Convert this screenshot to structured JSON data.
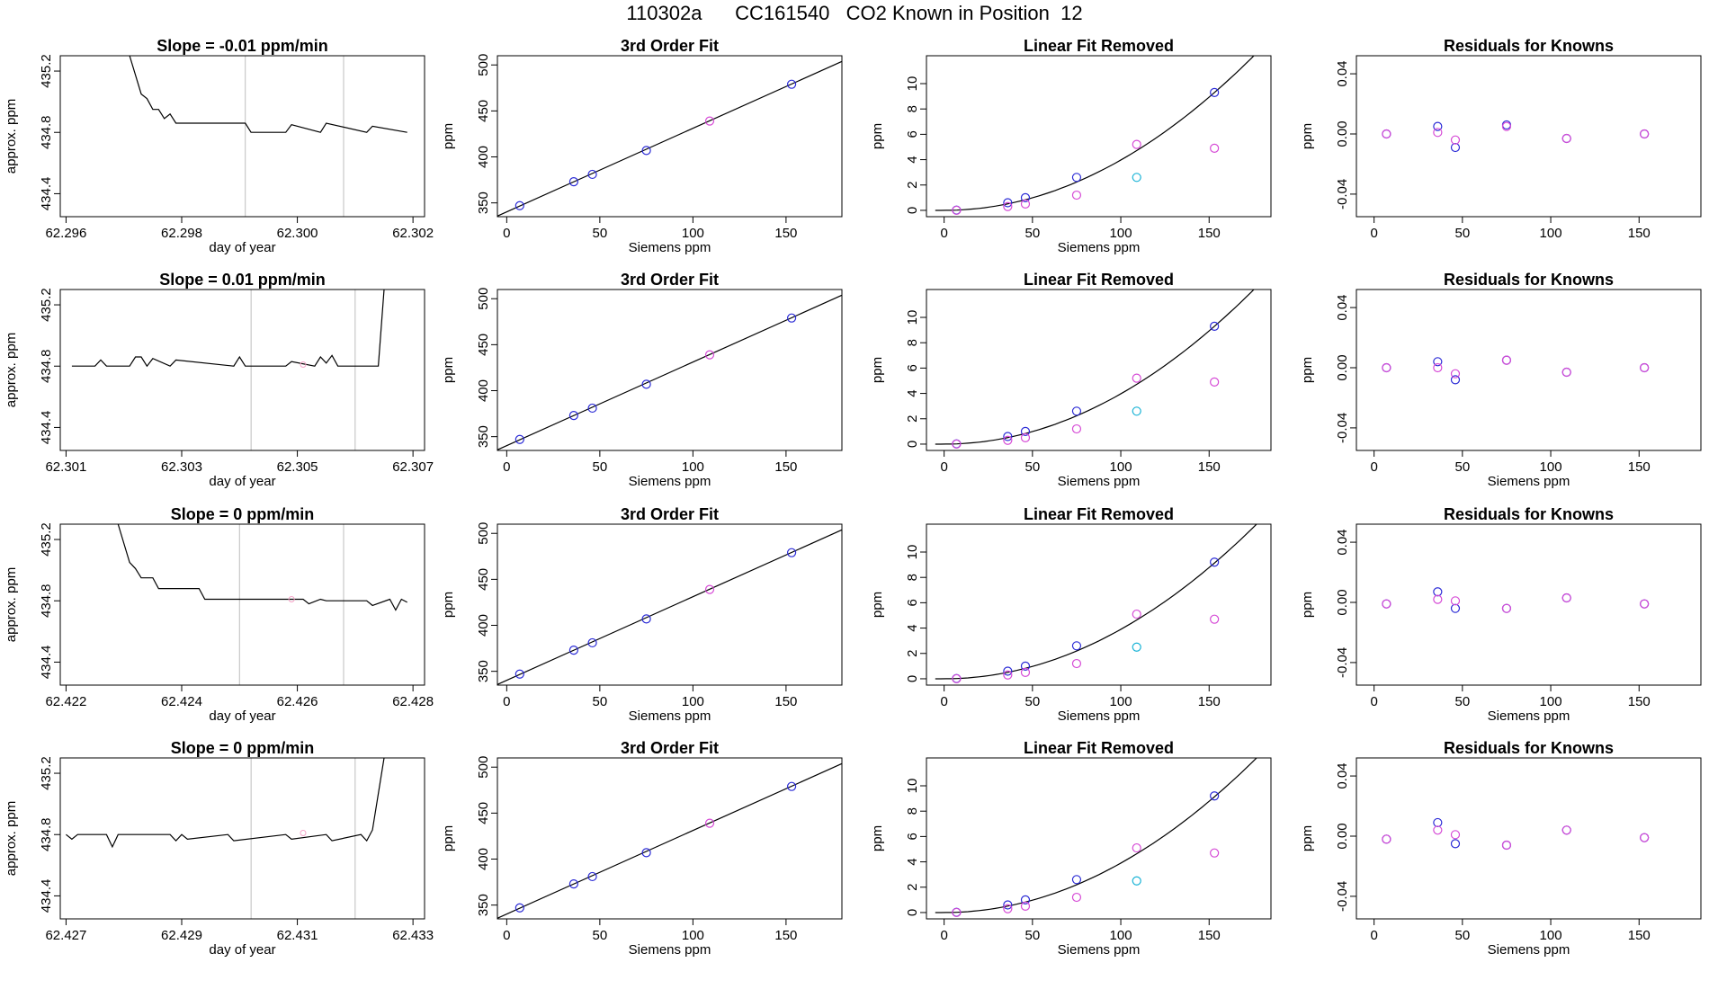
{
  "page": {
    "title": "110302a      CC161540   CO2 Known in Position  12"
  },
  "colors": {
    "axis": "#000000",
    "line": "#000000",
    "vline": "#bdbdbd",
    "blue": "#2b2bd6",
    "magenta": "#d64bd6",
    "cyan": "#19b3d6",
    "purple": "#7a2bd6",
    "pink": "#f5a3c7"
  },
  "chart_data": [
    {
      "type": "line",
      "row": 1,
      "title": "Slope =  -0.01  ppm/min",
      "xlabel": "day of year",
      "ylabel": "approx. ppm",
      "xlim": [
        62.2959,
        62.3022
      ],
      "ylim": [
        434.25,
        435.3
      ],
      "xticks": [
        "62.296",
        "62.298",
        "62.300",
        "62.302"
      ],
      "yticks": [
        "434.4",
        "434.8",
        "435.2"
      ],
      "vlines": [
        62.2991,
        62.3008
      ],
      "x": [
        62.2971,
        62.2973,
        62.2974,
        62.2975,
        62.2976,
        62.2977,
        62.2978,
        62.2979,
        62.298,
        62.2986,
        62.2991,
        62.2992,
        62.2993,
        62.2998,
        62.2999,
        62.3004,
        62.3005,
        62.3012,
        62.3013,
        62.3019
      ],
      "y": [
        435.3,
        435.05,
        435.02,
        434.95,
        434.95,
        434.89,
        434.92,
        434.86,
        434.86,
        434.86,
        434.86,
        434.8,
        434.8,
        434.8,
        434.85,
        434.8,
        434.86,
        434.8,
        434.84,
        434.8
      ]
    },
    {
      "type": "scatter",
      "row": 1,
      "title": "3rd Order Fit",
      "xlabel": "Siemens ppm",
      "ylabel": "ppm",
      "xlim": [
        -5,
        180
      ],
      "ylim": [
        335,
        510
      ],
      "xticks": [
        "0",
        "50",
        "100",
        "150"
      ],
      "yticks": [
        "350",
        "400",
        "450",
        "500"
      ],
      "fit": [
        [
          -5,
          335.7
        ],
        [
          180,
          503.8
        ]
      ],
      "series": [
        {
          "color": "blue",
          "x": [
            7,
            36,
            46,
            75,
            153
          ],
          "y": [
            347,
            373,
            381,
            407,
            479
          ]
        },
        {
          "color": "magenta",
          "x": [
            109
          ],
          "y": [
            439
          ]
        }
      ]
    },
    {
      "type": "scatter",
      "row": 1,
      "title": "Linear Fit Removed",
      "xlabel": "Siemens ppm",
      "ylabel": "ppm",
      "xlim": [
        -10,
        185
      ],
      "ylim": [
        -0.5,
        12.2
      ],
      "xticks": [
        "0",
        "50",
        "100",
        "150"
      ],
      "yticks": [
        "0",
        "2",
        "4",
        "6",
        "8",
        "10"
      ],
      "curve": {
        "k": 0.000397,
        "p": 2,
        "x0": -5,
        "x1": 180
      },
      "series": [
        {
          "color": "blue",
          "x": [
            7,
            36,
            46,
            75,
            153
          ],
          "y": [
            0.02,
            0.6,
            1.0,
            2.6,
            9.3
          ]
        },
        {
          "color": "magenta",
          "x": [
            7,
            36,
            46,
            75,
            109,
            153
          ],
          "y": [
            0.0,
            0.3,
            0.5,
            1.2,
            5.2,
            4.9
          ]
        },
        {
          "color": "cyan",
          "x": [
            109
          ],
          "y": [
            2.6
          ]
        }
      ]
    },
    {
      "type": "scatter",
      "row": 1,
      "title": "Residuals for Knowns",
      "xlabel": "",
      "ylabel": "ppm",
      "xlim": [
        -10,
        185
      ],
      "ylim": [
        -0.055,
        0.052
      ],
      "xticks": [
        "0",
        "50",
        "100",
        "150"
      ],
      "yticks": [
        "-0.04",
        "0.00",
        "0.04"
      ],
      "series": [
        {
          "color": "blue",
          "x": [
            7,
            36,
            46,
            75,
            109,
            153
          ],
          "y": [
            0.0,
            0.005,
            -0.009,
            0.006,
            -0.003,
            0.0
          ]
        },
        {
          "color": "magenta",
          "x": [
            7,
            36,
            46,
            75,
            109,
            153
          ],
          "y": [
            0.0,
            0.001,
            -0.004,
            0.005,
            -0.003,
            0.0
          ]
        }
      ]
    },
    {
      "type": "line",
      "row": 2,
      "title": "Slope =  0.01  ppm/min",
      "xlabel": "day of year",
      "ylabel": "approx. ppm",
      "xlim": [
        62.3009,
        62.3072
      ],
      "ylim": [
        434.25,
        435.3
      ],
      "xticks": [
        "62.301",
        "62.303",
        "62.305",
        "62.307"
      ],
      "yticks": [
        "434.4",
        "434.8",
        "435.2"
      ],
      "vlines": [
        62.3042,
        62.306
      ],
      "pinkdot": [
        62.3051,
        434.81
      ],
      "x": [
        62.3011,
        62.3015,
        62.3016,
        62.3017,
        62.3021,
        62.3022,
        62.3023,
        62.3024,
        62.3025,
        62.3028,
        62.3029,
        62.3039,
        62.304,
        62.3041,
        62.3048,
        62.3049,
        62.3053,
        62.3054,
        62.3055,
        62.3056,
        62.3057,
        62.3064,
        62.3065
      ],
      "y": [
        434.8,
        434.8,
        434.84,
        434.8,
        434.8,
        434.86,
        434.86,
        434.8,
        434.85,
        434.8,
        434.84,
        434.8,
        434.86,
        434.8,
        434.8,
        434.83,
        434.8,
        434.86,
        434.82,
        434.87,
        434.8,
        434.8,
        435.3
      ]
    },
    {
      "type": "scatter",
      "row": 2,
      "title": "3rd Order Fit",
      "xlabel": "Siemens ppm",
      "ylabel": "ppm",
      "xlim": [
        -5,
        180
      ],
      "ylim": [
        335,
        510
      ],
      "xticks": [
        "0",
        "50",
        "100",
        "150"
      ],
      "yticks": [
        "350",
        "400",
        "450",
        "500"
      ],
      "fit": [
        [
          -5,
          335.7
        ],
        [
          180,
          503.8
        ]
      ],
      "series": [
        {
          "color": "blue",
          "x": [
            7,
            36,
            46,
            75,
            153
          ],
          "y": [
            347,
            373,
            381,
            407,
            479
          ]
        },
        {
          "color": "magenta",
          "x": [
            109
          ],
          "y": [
            439
          ]
        }
      ]
    },
    {
      "type": "scatter",
      "row": 2,
      "title": "Linear Fit Removed",
      "xlabel": "Siemens ppm",
      "ylabel": "ppm",
      "xlim": [
        -10,
        185
      ],
      "ylim": [
        -0.5,
        12.2
      ],
      "xticks": [
        "0",
        "50",
        "100",
        "150"
      ],
      "yticks": [
        "0",
        "2",
        "4",
        "6",
        "8",
        "10"
      ],
      "curve": {
        "k": 0.000397,
        "p": 2,
        "x0": -5,
        "x1": 180
      },
      "series": [
        {
          "color": "blue",
          "x": [
            7,
            36,
            46,
            75,
            153
          ],
          "y": [
            0.02,
            0.6,
            1.0,
            2.6,
            9.3
          ]
        },
        {
          "color": "magenta",
          "x": [
            7,
            36,
            46,
            75,
            109,
            153
          ],
          "y": [
            0.0,
            0.3,
            0.5,
            1.2,
            5.2,
            4.9
          ]
        },
        {
          "color": "cyan",
          "x": [
            109
          ],
          "y": [
            2.6
          ]
        }
      ]
    },
    {
      "type": "scatter",
      "row": 2,
      "title": "Residuals for Knowns",
      "xlabel": "Siemens ppm",
      "ylabel": "ppm",
      "xlim": [
        -10,
        185
      ],
      "ylim": [
        -0.055,
        0.052
      ],
      "xticks": [
        "0",
        "50",
        "100",
        "150"
      ],
      "yticks": [
        "-0.04",
        "0.00",
        "0.04"
      ],
      "series": [
        {
          "color": "blue",
          "x": [
            7,
            36,
            46,
            75,
            109,
            153
          ],
          "y": [
            0.0,
            0.004,
            -0.008,
            0.005,
            -0.003,
            0.0
          ]
        },
        {
          "color": "magenta",
          "x": [
            7,
            36,
            46,
            75,
            109,
            153
          ],
          "y": [
            0.0,
            0.0,
            -0.004,
            0.005,
            -0.003,
            0.0
          ]
        }
      ]
    },
    {
      "type": "line",
      "row": 3,
      "title": "Slope =  0  ppm/min",
      "xlabel": "day of year",
      "ylabel": "approx. ppm",
      "xlim": [
        62.4219,
        62.4282
      ],
      "ylim": [
        434.25,
        435.3
      ],
      "xticks": [
        "62.422",
        "62.424",
        "62.426",
        "62.428"
      ],
      "yticks": [
        "434.4",
        "434.8",
        "435.2"
      ],
      "vlines": [
        62.425,
        62.4268
      ],
      "pinkdot": [
        62.4259,
        434.81
      ],
      "x": [
        62.4229,
        62.4231,
        62.4232,
        62.4233,
        62.4235,
        62.4236,
        62.4243,
        62.4244,
        62.4261,
        62.4262,
        62.4264,
        62.4265,
        62.4272,
        62.4273,
        62.4276,
        62.4277,
        62.4278,
        62.4279
      ],
      "y": [
        435.3,
        435.05,
        435.01,
        434.95,
        434.95,
        434.88,
        434.88,
        434.81,
        434.81,
        434.78,
        434.81,
        434.8,
        434.8,
        434.77,
        434.81,
        434.74,
        434.81,
        434.79
      ]
    },
    {
      "type": "scatter",
      "row": 3,
      "title": "3rd Order Fit",
      "xlabel": "Siemens ppm",
      "ylabel": "ppm",
      "xlim": [
        -5,
        180
      ],
      "ylim": [
        335,
        510
      ],
      "xticks": [
        "0",
        "50",
        "100",
        "150"
      ],
      "yticks": [
        "350",
        "400",
        "450",
        "500"
      ],
      "fit": [
        [
          -5,
          335.7
        ],
        [
          180,
          503.8
        ]
      ],
      "series": [
        {
          "color": "blue",
          "x": [
            7,
            36,
            46,
            75,
            153
          ],
          "y": [
            347,
            373,
            381,
            407,
            479
          ]
        },
        {
          "color": "magenta",
          "x": [
            109
          ],
          "y": [
            439
          ]
        }
      ]
    },
    {
      "type": "scatter",
      "row": 3,
      "title": "Linear Fit Removed",
      "xlabel": "Siemens ppm",
      "ylabel": "ppm",
      "xlim": [
        -10,
        185
      ],
      "ylim": [
        -0.5,
        12.2
      ],
      "xticks": [
        "0",
        "50",
        "100",
        "150"
      ],
      "yticks": [
        "0",
        "2",
        "4",
        "6",
        "8",
        "10"
      ],
      "curve": {
        "k": 0.00039,
        "p": 2,
        "x0": -5,
        "x1": 180
      },
      "series": [
        {
          "color": "blue",
          "x": [
            7,
            36,
            46,
            75,
            153
          ],
          "y": [
            0.02,
            0.6,
            1.0,
            2.6,
            9.2
          ]
        },
        {
          "color": "magenta",
          "x": [
            7,
            36,
            46,
            75,
            109,
            153
          ],
          "y": [
            0.0,
            0.3,
            0.5,
            1.2,
            5.1,
            4.7
          ]
        },
        {
          "color": "cyan",
          "x": [
            109
          ],
          "y": [
            2.5
          ]
        }
      ]
    },
    {
      "type": "scatter",
      "row": 3,
      "title": "Residuals for Knowns",
      "xlabel": "Siemens ppm",
      "ylabel": "ppm",
      "xlim": [
        -10,
        185
      ],
      "ylim": [
        -0.055,
        0.052
      ],
      "xticks": [
        "0",
        "50",
        "100",
        "150"
      ],
      "yticks": [
        "-0.04",
        "0.00",
        "0.04"
      ],
      "series": [
        {
          "color": "blue",
          "x": [
            7,
            36,
            46,
            75,
            109,
            153
          ],
          "y": [
            -0.001,
            0.007,
            -0.004,
            -0.004,
            0.003,
            -0.001
          ]
        },
        {
          "color": "magenta",
          "x": [
            7,
            36,
            46,
            75,
            109,
            153
          ],
          "y": [
            -0.001,
            0.002,
            0.001,
            -0.004,
            0.003,
            -0.001
          ]
        }
      ]
    },
    {
      "type": "line",
      "row": 4,
      "title": "Slope =  0  ppm/min",
      "xlabel": "day of year",
      "ylabel": "approx. ppm",
      "xlim": [
        62.4269,
        62.4332
      ],
      "ylim": [
        434.25,
        435.3
      ],
      "xticks": [
        "62.427",
        "62.429",
        "62.431",
        "62.433"
      ],
      "yticks": [
        "434.4",
        "434.8",
        "435.2"
      ],
      "vlines": [
        62.4302,
        62.432
      ],
      "pinkdot": [
        62.4311,
        434.81
      ],
      "x": [
        62.427,
        62.4271,
        62.4272,
        62.4277,
        62.4278,
        62.4279,
        62.4288,
        62.4289,
        62.429,
        62.4291,
        62.4298,
        62.4299,
        62.4308,
        62.4309,
        62.4315,
        62.4316,
        62.4321,
        62.4322,
        62.4323,
        62.4325
      ],
      "y": [
        434.8,
        434.77,
        434.8,
        434.8,
        434.72,
        434.8,
        434.8,
        434.76,
        434.8,
        434.77,
        434.8,
        434.76,
        434.8,
        434.77,
        434.8,
        434.76,
        434.8,
        434.76,
        434.83,
        435.3
      ]
    },
    {
      "type": "scatter",
      "row": 4,
      "title": "3rd Order Fit",
      "xlabel": "Siemens ppm",
      "ylabel": "ppm",
      "xlim": [
        -5,
        180
      ],
      "ylim": [
        335,
        510
      ],
      "xticks": [
        "0",
        "50",
        "100",
        "150"
      ],
      "yticks": [
        "350",
        "400",
        "450",
        "500"
      ],
      "fit": [
        [
          -5,
          335.7
        ],
        [
          180,
          503.8
        ]
      ],
      "series": [
        {
          "color": "blue",
          "x": [
            7,
            36,
            46,
            75,
            153
          ],
          "y": [
            347,
            373,
            381,
            407,
            479
          ]
        },
        {
          "color": "magenta",
          "x": [
            109
          ],
          "y": [
            439
          ]
        }
      ]
    },
    {
      "type": "scatter",
      "row": 4,
      "title": "Linear Fit Removed",
      "xlabel": "Siemens ppm",
      "ylabel": "ppm",
      "xlim": [
        -10,
        185
      ],
      "ylim": [
        -0.5,
        12.2
      ],
      "xticks": [
        "0",
        "50",
        "100",
        "150"
      ],
      "yticks": [
        "0",
        "2",
        "4",
        "6",
        "8",
        "10"
      ],
      "curve": {
        "k": 0.00039,
        "p": 2,
        "x0": -5,
        "x1": 180
      },
      "series": [
        {
          "color": "blue",
          "x": [
            7,
            36,
            46,
            75,
            153
          ],
          "y": [
            0.02,
            0.6,
            1.0,
            2.6,
            9.2
          ]
        },
        {
          "color": "magenta",
          "x": [
            7,
            36,
            46,
            75,
            109,
            153
          ],
          "y": [
            0.0,
            0.3,
            0.5,
            1.2,
            5.1,
            4.7
          ]
        },
        {
          "color": "cyan",
          "x": [
            109
          ],
          "y": [
            2.5
          ]
        }
      ]
    },
    {
      "type": "scatter",
      "row": 4,
      "title": "Residuals for Knowns",
      "xlabel": "Siemens ppm",
      "ylabel": "ppm",
      "xlim": [
        -10,
        185
      ],
      "ylim": [
        -0.055,
        0.052
      ],
      "xticks": [
        "0",
        "50",
        "100",
        "150"
      ],
      "yticks": [
        "-0.04",
        "0.00",
        "0.04"
      ],
      "series": [
        {
          "color": "blue",
          "x": [
            7,
            36,
            46,
            75,
            109,
            153
          ],
          "y": [
            -0.002,
            0.009,
            -0.005,
            -0.006,
            0.004,
            -0.001
          ]
        },
        {
          "color": "magenta",
          "x": [
            7,
            36,
            46,
            75,
            109,
            153
          ],
          "y": [
            -0.002,
            0.004,
            0.001,
            -0.006,
            0.004,
            -0.001
          ]
        }
      ]
    }
  ]
}
